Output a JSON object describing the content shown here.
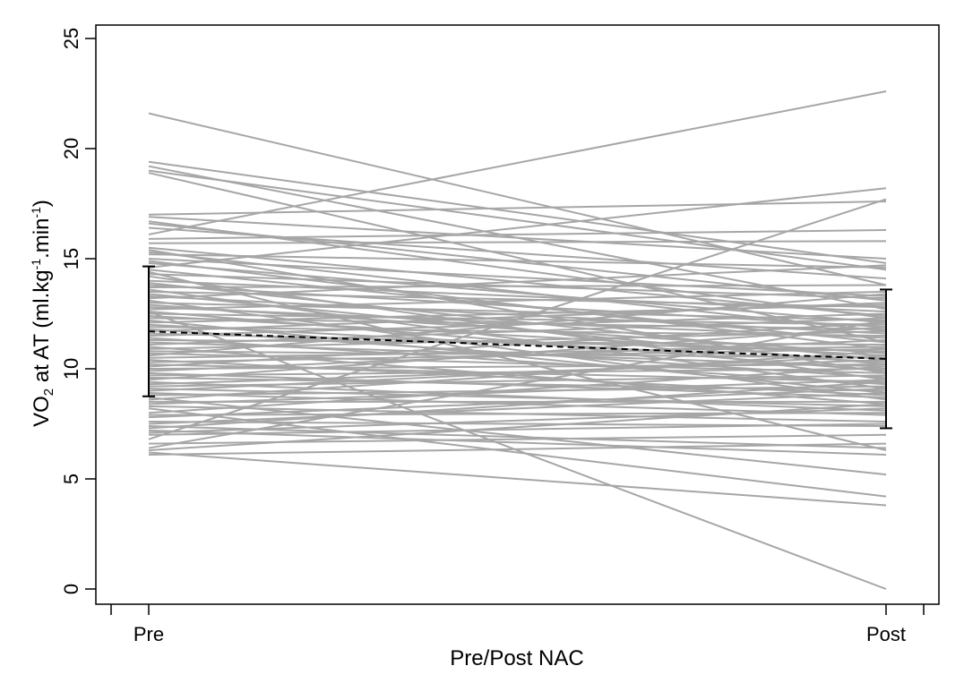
{
  "chart_data": {
    "type": "line",
    "title": "",
    "xlabel": "Pre/Post NAC",
    "ylabel": {
      "a": "VO",
      "sub": "2",
      "b": " at AT (ml.kg",
      "sup1": "-1",
      "c": ".min",
      "sup2": "-1",
      "d": ")"
    },
    "categories": [
      "Pre",
      "Post"
    ],
    "ylim": [
      0,
      25
    ],
    "yticks": [
      0,
      5,
      10,
      15,
      20,
      25
    ],
    "grid": false,
    "legend": "none",
    "colors": {
      "individual": "#a6a6a6",
      "mean": "#000000",
      "axis": "#000000"
    },
    "mean": {
      "values": [
        11.7,
        10.45
      ]
    },
    "sd_error_bars": [
      {
        "category": "Pre",
        "low": 8.75,
        "high": 14.65
      },
      {
        "category": "Post",
        "low": 7.3,
        "high": 13.6
      }
    ],
    "individual_lines": [
      [
        21.6,
        13.8
      ],
      [
        19.4,
        14.8
      ],
      [
        19.2,
        12.7
      ],
      [
        19.0,
        14.5
      ],
      [
        18.9,
        11.2
      ],
      [
        17.0,
        17.6
      ],
      [
        16.9,
        15.0
      ],
      [
        16.7,
        12.3
      ],
      [
        16.6,
        13.1
      ],
      [
        16.4,
        14.1
      ],
      [
        16.1,
        22.6
      ],
      [
        15.9,
        16.3
      ],
      [
        15.7,
        15.8
      ],
      [
        15.5,
        12.4
      ],
      [
        15.4,
        9.8
      ],
      [
        15.3,
        11.7
      ],
      [
        15.2,
        14.6
      ],
      [
        15.0,
        13.3
      ],
      [
        14.9,
        10.9
      ],
      [
        14.8,
        12.1
      ],
      [
        14.6,
        18.2
      ],
      [
        14.5,
        11.2
      ],
      [
        14.4,
        6.3
      ],
      [
        14.3,
        13.2
      ],
      [
        14.2,
        9.5
      ],
      [
        14.0,
        12.6
      ],
      [
        13.9,
        10.4
      ],
      [
        13.8,
        11.9
      ],
      [
        13.7,
        13.8
      ],
      [
        13.6,
        9.1
      ],
      [
        13.5,
        12.8
      ],
      [
        13.4,
        10.2
      ],
      [
        13.3,
        11.6
      ],
      [
        13.2,
        14.7
      ],
      [
        13.1,
        8.6
      ],
      [
        13.0,
        12.2
      ],
      [
        12.9,
        10.7
      ],
      [
        12.8,
        11.4
      ],
      [
        12.7,
        13.5
      ],
      [
        12.6,
        9.9
      ],
      [
        12.5,
        12.0
      ],
      [
        12.4,
        10.6
      ],
      [
        12.3,
        11.8
      ],
      [
        12.2,
        8.9
      ],
      [
        12.1,
        12.9
      ],
      [
        12.0,
        10.3
      ],
      [
        11.9,
        11.5
      ],
      [
        11.8,
        9.6
      ],
      [
        11.7,
        13.0
      ],
      [
        11.6,
        10.8
      ],
      [
        11.5,
        12.5
      ],
      [
        11.4,
        9.3
      ],
      [
        11.3,
        11.1
      ],
      [
        11.2,
        10.1
      ],
      [
        11.1,
        12.3
      ],
      [
        11.0,
        8.4
      ],
      [
        10.9,
        11.7
      ],
      [
        10.8,
        10.5
      ],
      [
        10.7,
        9.8
      ],
      [
        10.6,
        13.4
      ],
      [
        10.5,
        11.0
      ],
      [
        10.4,
        8.8
      ],
      [
        10.3,
        10.9
      ],
      [
        10.2,
        9.4
      ],
      [
        10.1,
        12.1
      ],
      [
        10.0,
        10.2
      ],
      [
        9.9,
        11.3
      ],
      [
        9.8,
        8.7
      ],
      [
        9.7,
        10.0
      ],
      [
        9.6,
        9.0
      ],
      [
        9.5,
        11.9
      ],
      [
        9.4,
        8.1
      ],
      [
        9.3,
        10.4
      ],
      [
        9.2,
        9.7
      ],
      [
        9.1,
        8.3
      ],
      [
        9.0,
        10.6
      ],
      [
        8.9,
        7.9
      ],
      [
        8.8,
        9.2
      ],
      [
        8.7,
        5.2
      ],
      [
        8.6,
        10.8
      ],
      [
        8.5,
        8.5
      ],
      [
        8.4,
        9.5
      ],
      [
        8.3,
        7.6
      ],
      [
        8.2,
        4.2
      ],
      [
        8.0,
        10.1
      ],
      [
        7.9,
        8.0
      ],
      [
        7.8,
        9.1
      ],
      [
        7.6,
        7.4
      ],
      [
        7.5,
        8.9
      ],
      [
        7.4,
        6.4
      ],
      [
        7.3,
        9.4
      ],
      [
        7.2,
        6.1
      ],
      [
        7.1,
        8.2
      ],
      [
        7.0,
        7.5
      ],
      [
        6.8,
        17.7
      ],
      [
        6.6,
        7.0
      ],
      [
        6.4,
        12.2
      ],
      [
        6.3,
        8.4
      ],
      [
        6.2,
        3.8
      ],
      [
        6.1,
        6.6
      ],
      [
        12.6,
        0.0
      ]
    ]
  }
}
